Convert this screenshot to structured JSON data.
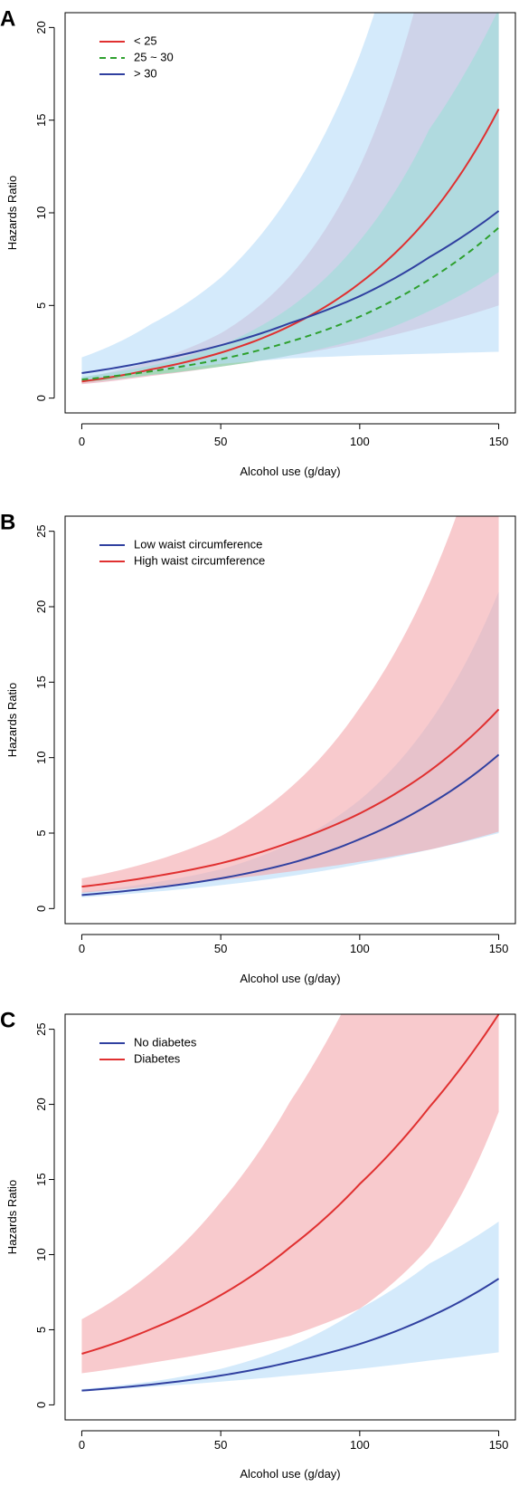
{
  "chart_data": [
    {
      "panel": "A",
      "type": "line",
      "xlabel": "Alcohol use (g/day)",
      "ylabel": "Hazards Ratio",
      "xlim": [
        -6,
        156
      ],
      "ylim": [
        -0.8,
        20.8
      ],
      "xticks": [
        0,
        50,
        100,
        150
      ],
      "yticks": [
        0,
        5,
        10,
        15,
        20
      ],
      "x": [
        0,
        25,
        50,
        75,
        100,
        125,
        150
      ],
      "legend": "top-left",
      "series": [
        {
          "name": "< 25",
          "color": "#e03030",
          "band_color": "#e6a0b4",
          "dash": false,
          "values": [
            0.9,
            1.55,
            2.45,
            3.9,
            6.2,
            9.8,
            15.6
          ],
          "lower": [
            0.75,
            1.2,
            1.7,
            2.3,
            3.0,
            3.9,
            5.0
          ],
          "upper": [
            1.1,
            2.0,
            3.5,
            6.6,
            12.5,
            24.0,
            45.0
          ]
        },
        {
          "name": "25 ~ 30",
          "color": "#2ea02e",
          "band_color": "#74e3a8",
          "dash": true,
          "values": [
            1.0,
            1.45,
            2.1,
            3.05,
            4.4,
            6.4,
            9.2
          ],
          "lower": [
            0.85,
            1.25,
            1.7,
            2.3,
            3.2,
            4.7,
            6.8
          ],
          "upper": [
            1.15,
            1.75,
            2.85,
            4.9,
            8.5,
            14.5,
            21.0
          ]
        },
        {
          "name": "> 30",
          "color": "#3040a0",
          "band_color": "#b8dcf8",
          "dash": false,
          "values": [
            1.35,
            2.0,
            2.85,
            4.05,
            5.5,
            7.6,
            10.1
          ],
          "lower": [
            0.9,
            1.45,
            1.85,
            2.15,
            2.3,
            2.4,
            2.5
          ],
          "upper": [
            2.2,
            4.0,
            6.5,
            11.0,
            18.5,
            32.0,
            55.0
          ]
        }
      ]
    },
    {
      "panel": "B",
      "type": "line",
      "xlabel": "Alcohol use (g/day)",
      "ylabel": "Hazards Ratio",
      "xlim": [
        -6,
        156
      ],
      "ylim": [
        -1.0,
        26.0
      ],
      "xticks": [
        0,
        50,
        100,
        150
      ],
      "yticks": [
        0,
        5,
        10,
        15,
        20,
        25
      ],
      "x": [
        0,
        25,
        50,
        75,
        100,
        125,
        150
      ],
      "legend": "top-left",
      "series": [
        {
          "name": "Low waist circumference",
          "color": "#3040a0",
          "band_color": "#b8dcf8",
          "dash": false,
          "values": [
            0.9,
            1.35,
            2.0,
            3.0,
            4.6,
            6.9,
            10.2
          ],
          "lower": [
            0.75,
            1.1,
            1.55,
            2.15,
            2.95,
            3.9,
            5.0
          ],
          "upper": [
            1.1,
            1.7,
            2.6,
            4.3,
            7.2,
            12.3,
            21.0
          ]
        },
        {
          "name": "High waist circumference",
          "color": "#e03030",
          "band_color": "#f4a6ac",
          "dash": false,
          "values": [
            1.45,
            2.1,
            3.0,
            4.4,
            6.3,
            9.1,
            13.2
          ],
          "lower": [
            1.05,
            1.45,
            1.9,
            2.45,
            3.1,
            3.9,
            5.1
          ],
          "upper": [
            2.0,
            3.1,
            4.8,
            8.0,
            13.3,
            21.5,
            35.0
          ]
        }
      ]
    },
    {
      "panel": "C",
      "type": "line",
      "xlabel": "Alcohol use (g/day)",
      "ylabel": "Hazards Ratio",
      "xlim": [
        -6,
        156
      ],
      "ylim": [
        -1.0,
        26.0
      ],
      "xticks": [
        0,
        50,
        100,
        150
      ],
      "yticks": [
        0,
        5,
        10,
        15,
        20,
        25
      ],
      "x": [
        0,
        25,
        50,
        75,
        100,
        125,
        150
      ],
      "legend": "top-left",
      "series": [
        {
          "name": "No diabetes",
          "color": "#3040a0",
          "band_color": "#b8dcf8",
          "dash": false,
          "values": [
            0.95,
            1.35,
            1.95,
            2.85,
            4.05,
            5.85,
            8.4
          ],
          "lower": [
            0.9,
            1.2,
            1.55,
            1.95,
            2.4,
            2.95,
            3.5
          ],
          "upper": [
            1.05,
            1.55,
            2.4,
            3.9,
            6.4,
            9.4,
            12.2
          ]
        },
        {
          "name": "Diabetes",
          "color": "#e03030",
          "band_color": "#f4a6ac",
          "dash": false,
          "values": [
            3.4,
            5.05,
            7.3,
            10.5,
            14.7,
            19.8,
            26.0
          ],
          "lower": [
            2.1,
            2.8,
            3.6,
            4.6,
            6.4,
            10.5,
            19.5
          ],
          "upper": [
            5.7,
            8.8,
            13.5,
            20.2,
            28.5,
            38.0,
            48.0
          ]
        }
      ]
    }
  ]
}
